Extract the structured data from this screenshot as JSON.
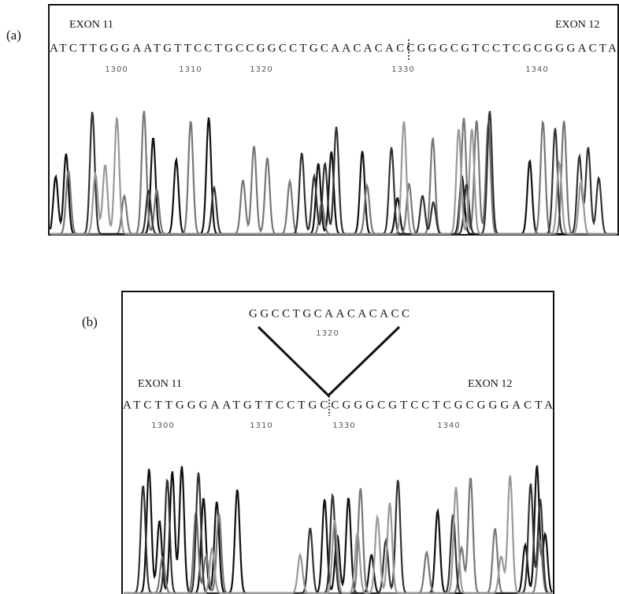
{
  "panels": [
    {
      "label": "(a)",
      "exon_left": "EXON 11",
      "exon_right": "EXON 12",
      "sequence": "ATCTTGGGAATGTTCCTGCCGGCCTGCAACACACCGGGCGTCCTCGCGGGACTA",
      "positions": [
        1300,
        1310,
        1320,
        1330,
        1340
      ]
    },
    {
      "label": "(b)",
      "deleted_sequence": "GGCCTGCAACACACC",
      "deleted_position": 1320,
      "exon_left": "EXON 11",
      "exon_right": "EXON 12",
      "sequence": "ATCTTGGGAATGTTCCTGCCGGGCGTCCTCGCGGGACTA",
      "positions": [
        1300,
        1310,
        1330,
        1340
      ]
    }
  ]
}
